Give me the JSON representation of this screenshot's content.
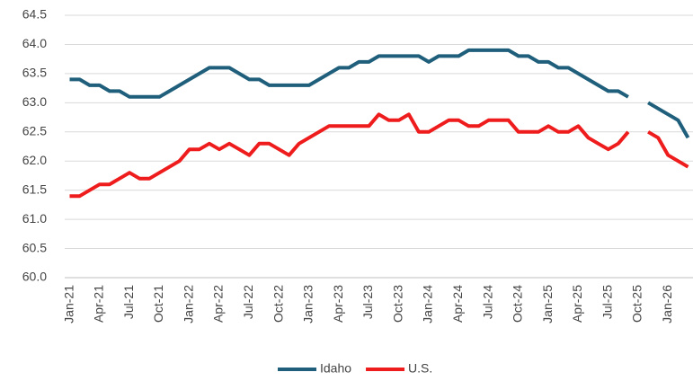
{
  "chart_data": {
    "type": "line",
    "categories": [
      "Jan-21",
      null,
      null,
      "Apr-21",
      null,
      null,
      "Jul-21",
      null,
      null,
      "Oct-21",
      null,
      null,
      "Jan-22",
      null,
      null,
      "Apr-22",
      null,
      null,
      "Jul-22",
      null,
      null,
      "Oct-22",
      null,
      null,
      "Jan-23",
      null,
      null,
      "Apr-23",
      null,
      null,
      "Jul-23",
      null,
      null,
      "Oct-23",
      null,
      null,
      "Jan-24",
      null,
      null,
      "Apr-24",
      null,
      null,
      "Jul-24",
      null,
      null,
      "Oct-24",
      null,
      null,
      "Jan-25",
      null,
      null,
      "Apr-25",
      null,
      null,
      "Jul-25",
      null,
      null,
      "Oct-25",
      null,
      null,
      "Jan-26",
      null,
      null
    ],
    "series": [
      {
        "name": "Idaho",
        "color": "#1f5f7b",
        "values": [
          63.4,
          63.4,
          63.3,
          63.3,
          63.2,
          63.2,
          63.1,
          63.1,
          63.1,
          63.1,
          63.2,
          63.3,
          63.4,
          63.5,
          63.6,
          63.6,
          63.6,
          63.5,
          63.4,
          63.4,
          63.3,
          63.3,
          63.3,
          63.3,
          63.3,
          63.4,
          63.5,
          63.6,
          63.6,
          63.7,
          63.7,
          63.8,
          63.8,
          63.8,
          63.8,
          63.8,
          63.7,
          63.8,
          63.8,
          63.8,
          63.9,
          63.9,
          63.9,
          63.9,
          63.9,
          63.8,
          63.8,
          63.7,
          63.7,
          63.6,
          63.6,
          63.5,
          63.4,
          63.3,
          63.2,
          63.2,
          63.1,
          null,
          63.0,
          62.9,
          62.8,
          62.7,
          62.4
        ]
      },
      {
        "name": "U.S.",
        "color": "#ee1c1c",
        "values": [
          61.4,
          61.4,
          61.5,
          61.6,
          61.6,
          61.7,
          61.8,
          61.7,
          61.7,
          61.8,
          61.9,
          62.0,
          62.2,
          62.2,
          62.3,
          62.2,
          62.3,
          62.2,
          62.1,
          62.3,
          62.3,
          62.2,
          62.1,
          62.3,
          62.4,
          62.5,
          62.6,
          62.6,
          62.6,
          62.6,
          62.6,
          62.8,
          62.7,
          62.7,
          62.8,
          62.5,
          62.5,
          62.6,
          62.7,
          62.7,
          62.6,
          62.6,
          62.7,
          62.7,
          62.7,
          62.5,
          62.5,
          62.5,
          62.6,
          62.5,
          62.5,
          62.6,
          62.4,
          62.3,
          62.2,
          62.3,
          62.5,
          null,
          62.5,
          62.4,
          62.1,
          62.0,
          61.9
        ]
      }
    ],
    "ylim": [
      60,
      64.5
    ],
    "yticks": [
      {
        "value": 60,
        "label": "60.0"
      },
      60.5,
      {
        "value": 61,
        "label": "61.0"
      },
      61.5,
      {
        "value": 62,
        "label": "62.0"
      },
      62.5,
      {
        "value": 63,
        "label": "63.0"
      },
      63.5,
      {
        "value": 64,
        "label": "64.0"
      },
      64.5
    ],
    "grid": true,
    "legend": "bottom"
  }
}
